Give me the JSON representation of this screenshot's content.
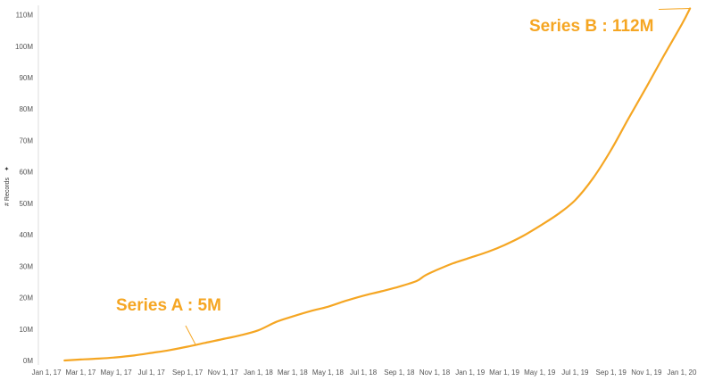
{
  "colors": {
    "accent": "#F5A623",
    "axis": "#cccccc",
    "text": "#555555"
  },
  "chart_data": {
    "type": "line",
    "title": "",
    "xlabel": "",
    "ylabel": "# Records",
    "ylabel_icon": "sparkle-icon",
    "grid": false,
    "ylim": [
      0,
      113
    ],
    "y_ticks": [
      {
        "value": 0,
        "label": "0M"
      },
      {
        "value": 10,
        "label": "10M"
      },
      {
        "value": 20,
        "label": "20M"
      },
      {
        "value": 30,
        "label": "30M"
      },
      {
        "value": 40,
        "label": "40M"
      },
      {
        "value": 50,
        "label": "50M"
      },
      {
        "value": 60,
        "label": "60M"
      },
      {
        "value": 70,
        "label": "70M"
      },
      {
        "value": 80,
        "label": "80M"
      },
      {
        "value": 90,
        "label": "90M"
      },
      {
        "value": 100,
        "label": "100M"
      },
      {
        "value": 110,
        "label": "110M"
      }
    ],
    "x_ticks": [
      {
        "value": "2017-01-01",
        "label": "Jan 1, 17"
      },
      {
        "value": "2017-03-01",
        "label": "Mar 1, 17"
      },
      {
        "value": "2017-05-01",
        "label": "May 1, 17"
      },
      {
        "value": "2017-07-01",
        "label": "Jul 1, 17"
      },
      {
        "value": "2017-09-01",
        "label": "Sep 1, 17"
      },
      {
        "value": "2017-11-01",
        "label": "Nov 1, 17"
      },
      {
        "value": "2018-01-01",
        "label": "Jan 1, 18"
      },
      {
        "value": "2018-03-01",
        "label": "Mar 1, 18"
      },
      {
        "value": "2018-05-01",
        "label": "May 1, 18"
      },
      {
        "value": "2018-07-01",
        "label": "Jul 1, 18"
      },
      {
        "value": "2018-09-01",
        "label": "Sep 1, 18"
      },
      {
        "value": "2018-11-01",
        "label": "Nov 1, 18"
      },
      {
        "value": "2019-01-01",
        "label": "Jan 1, 19"
      },
      {
        "value": "2019-03-01",
        "label": "Mar 1, 19"
      },
      {
        "value": "2019-05-01",
        "label": "May 1, 19"
      },
      {
        "value": "2019-07-01",
        "label": "Jul 1, 19"
      },
      {
        "value": "2019-09-01",
        "label": "Sep 1, 19"
      },
      {
        "value": "2019-11-01",
        "label": "Nov 1, 19"
      },
      {
        "value": "2020-01-01",
        "label": "Jan 1, 20"
      }
    ],
    "xlim": [
      "2016-12-18",
      "2020-02-10"
    ],
    "series": [
      {
        "name": "",
        "color": "#F5A623",
        "points": [
          {
            "x": "2017-02-01",
            "y": 0
          },
          {
            "x": "2017-03-01",
            "y": 0.3
          },
          {
            "x": "2017-04-01",
            "y": 0.6
          },
          {
            "x": "2017-05-01",
            "y": 1.0
          },
          {
            "x": "2017-06-01",
            "y": 1.6
          },
          {
            "x": "2017-07-01",
            "y": 2.4
          },
          {
            "x": "2017-08-01",
            "y": 3.3
          },
          {
            "x": "2017-09-01",
            "y": 4.4
          },
          {
            "x": "2017-10-01",
            "y": 5.6
          },
          {
            "x": "2017-11-01",
            "y": 6.8
          },
          {
            "x": "2017-12-01",
            "y": 8.0
          },
          {
            "x": "2018-01-01",
            "y": 9.6
          },
          {
            "x": "2018-02-01",
            "y": 12.3
          },
          {
            "x": "2018-03-01",
            "y": 14.0
          },
          {
            "x": "2018-04-01",
            "y": 15.7
          },
          {
            "x": "2018-05-01",
            "y": 17.1
          },
          {
            "x": "2018-06-01",
            "y": 19.0
          },
          {
            "x": "2018-07-01",
            "y": 20.6
          },
          {
            "x": "2018-08-01",
            "y": 22.0
          },
          {
            "x": "2018-09-01",
            "y": 23.5
          },
          {
            "x": "2018-10-01",
            "y": 25.3
          },
          {
            "x": "2018-10-15",
            "y": 27.0
          },
          {
            "x": "2018-11-01",
            "y": 28.5
          },
          {
            "x": "2018-12-01",
            "y": 30.8
          },
          {
            "x": "2019-01-01",
            "y": 32.7
          },
          {
            "x": "2019-02-01",
            "y": 34.6
          },
          {
            "x": "2019-03-01",
            "y": 36.7
          },
          {
            "x": "2019-04-01",
            "y": 39.5
          },
          {
            "x": "2019-05-01",
            "y": 42.8
          },
          {
            "x": "2019-06-01",
            "y": 46.5
          },
          {
            "x": "2019-07-01",
            "y": 51.0
          },
          {
            "x": "2019-08-01",
            "y": 58.0
          },
          {
            "x": "2019-09-01",
            "y": 67.0
          },
          {
            "x": "2019-10-01",
            "y": 77.0
          },
          {
            "x": "2019-11-01",
            "y": 87.0
          },
          {
            "x": "2019-12-01",
            "y": 97.0
          },
          {
            "x": "2020-01-01",
            "y": 107.0
          },
          {
            "x": "2020-01-15",
            "y": 112.0
          }
        ]
      }
    ],
    "annotations": [
      {
        "text": "Series A : 5M",
        "point": {
          "x": "2017-09-15",
          "y": 5
        }
      },
      {
        "text": "Series B :  112M",
        "point": {
          "x": "2020-01-15",
          "y": 112
        }
      }
    ]
  }
}
